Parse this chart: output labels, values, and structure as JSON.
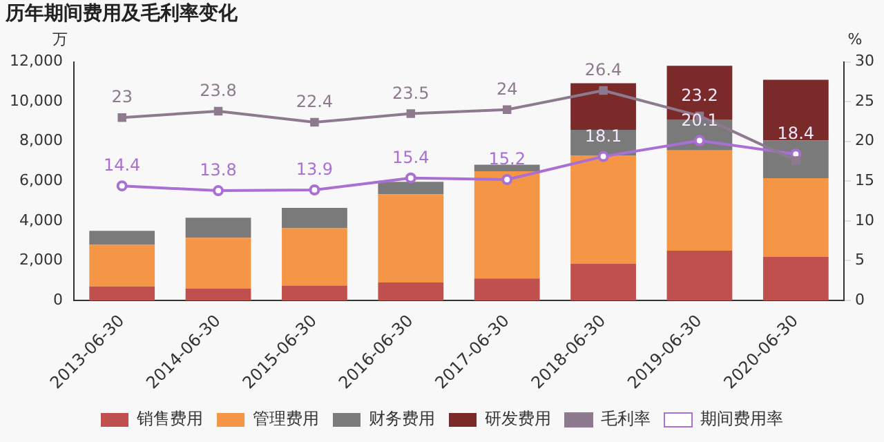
{
  "chart_data": {
    "type": "bar",
    "title": "历年期间费用及毛利率变化",
    "ylabel": "万",
    "y2label": "%",
    "categories": [
      "2013-06-30",
      "2014-06-30",
      "2015-06-30",
      "2016-06-30",
      "2017-06-30",
      "2018-06-30",
      "2019-06-30",
      "2020-06-30"
    ],
    "stacked": true,
    "series": [
      {
        "name": "销售费用",
        "color": "#c0504d",
        "values": [
          700,
          600,
          750,
          900,
          1100,
          1850,
          2500,
          2200
        ]
      },
      {
        "name": "管理费用",
        "color": "#f59646",
        "values": [
          2100,
          2550,
          2880,
          4440,
          5400,
          5450,
          5050,
          3950
        ]
      },
      {
        "name": "财务费用",
        "color": "#7a7a7a",
        "values": [
          700,
          1010,
          1030,
          630,
          330,
          1280,
          1550,
          1900
        ]
      },
      {
        "name": "研发费用",
        "color": "#7b2a2a",
        "values": [
          null,
          null,
          null,
          null,
          null,
          2350,
          2700,
          3050
        ]
      },
      {
        "name": "毛利率",
        "type": "line",
        "axis": "y2",
        "marker": "square",
        "color": "#8e7a8e",
        "values": [
          23,
          23.8,
          22.4,
          23.5,
          24,
          26.4,
          23.2,
          17.6
        ],
        "value_labels": [
          "23",
          "23.8",
          "22.4",
          "23.5",
          "24",
          "26.4",
          "23.2",
          null
        ]
      },
      {
        "name": "期间费用率",
        "type": "line",
        "axis": "y2",
        "marker": "circle",
        "color": "#a96fd4",
        "values": [
          14.4,
          13.8,
          13.9,
          15.4,
          15.2,
          18.1,
          20.1,
          18.4
        ],
        "value_labels": [
          "14.4",
          "13.8",
          "13.9",
          "15.4",
          "15.2",
          "18.1",
          "20.1",
          "18.4"
        ]
      }
    ],
    "ylim": [
      0,
      12000
    ],
    "yticks": [
      {
        "value": 0,
        "label": "0"
      },
      {
        "value": 2000,
        "label": "2,000"
      },
      {
        "value": 4000,
        "label": "4,000"
      },
      {
        "value": 6000,
        "label": "6,000"
      },
      {
        "value": 8000,
        "label": "8,000"
      },
      {
        "value": 10000,
        "label": "10,000"
      },
      {
        "value": 12000,
        "label": "12,000"
      }
    ],
    "y2lim": [
      0,
      30
    ],
    "y2ticks": [
      0,
      5,
      10,
      15,
      20,
      25,
      30
    ],
    "legend": "bottom",
    "grid": false
  }
}
